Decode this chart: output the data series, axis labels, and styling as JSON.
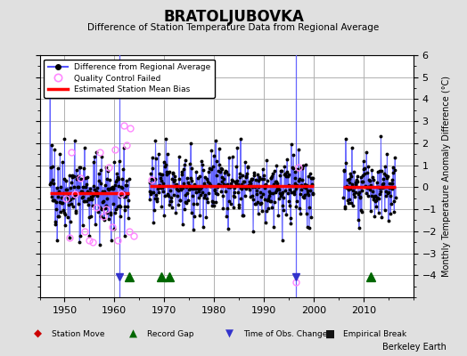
{
  "title": "BRATOLJUBOVKA",
  "subtitle": "Difference of Station Temperature Data from Regional Average",
  "ylabel": "Monthly Temperature Anomaly Difference (°C)",
  "xlabel_note": "Berkeley Earth",
  "xlim": [
    1945,
    2020
  ],
  "ylim": [
    -5,
    6
  ],
  "yticks": [
    -4,
    -3,
    -2,
    -1,
    0,
    1,
    2,
    3,
    4,
    5,
    6
  ],
  "xticks": [
    1950,
    1960,
    1970,
    1980,
    1990,
    2000,
    2010
  ],
  "bg_color": "#e0e0e0",
  "plot_bg_color": "#ffffff",
  "grid_color": "#b0b0b0",
  "line_color": "#5555ff",
  "dot_color": "#000000",
  "bias_color": "#ff0000",
  "qc_color": "#ff88ff",
  "gap_line_color": "#8888ff",
  "segments": [
    {
      "xstart": 1947.0,
      "xend": 1963.0,
      "bias": -0.25
    },
    {
      "xstart": 1967.0,
      "xend": 2000.0,
      "bias": 0.05
    },
    {
      "xstart": 2006.0,
      "xend": 2016.5,
      "bias": 0.0
    }
  ],
  "record_gaps": [
    1963.0,
    1969.5,
    1971.0,
    2011.5
  ],
  "obs_changes": [
    1961.0,
    1996.5
  ],
  "station_moves": [],
  "empirical_breaks": [],
  "seed": 42
}
